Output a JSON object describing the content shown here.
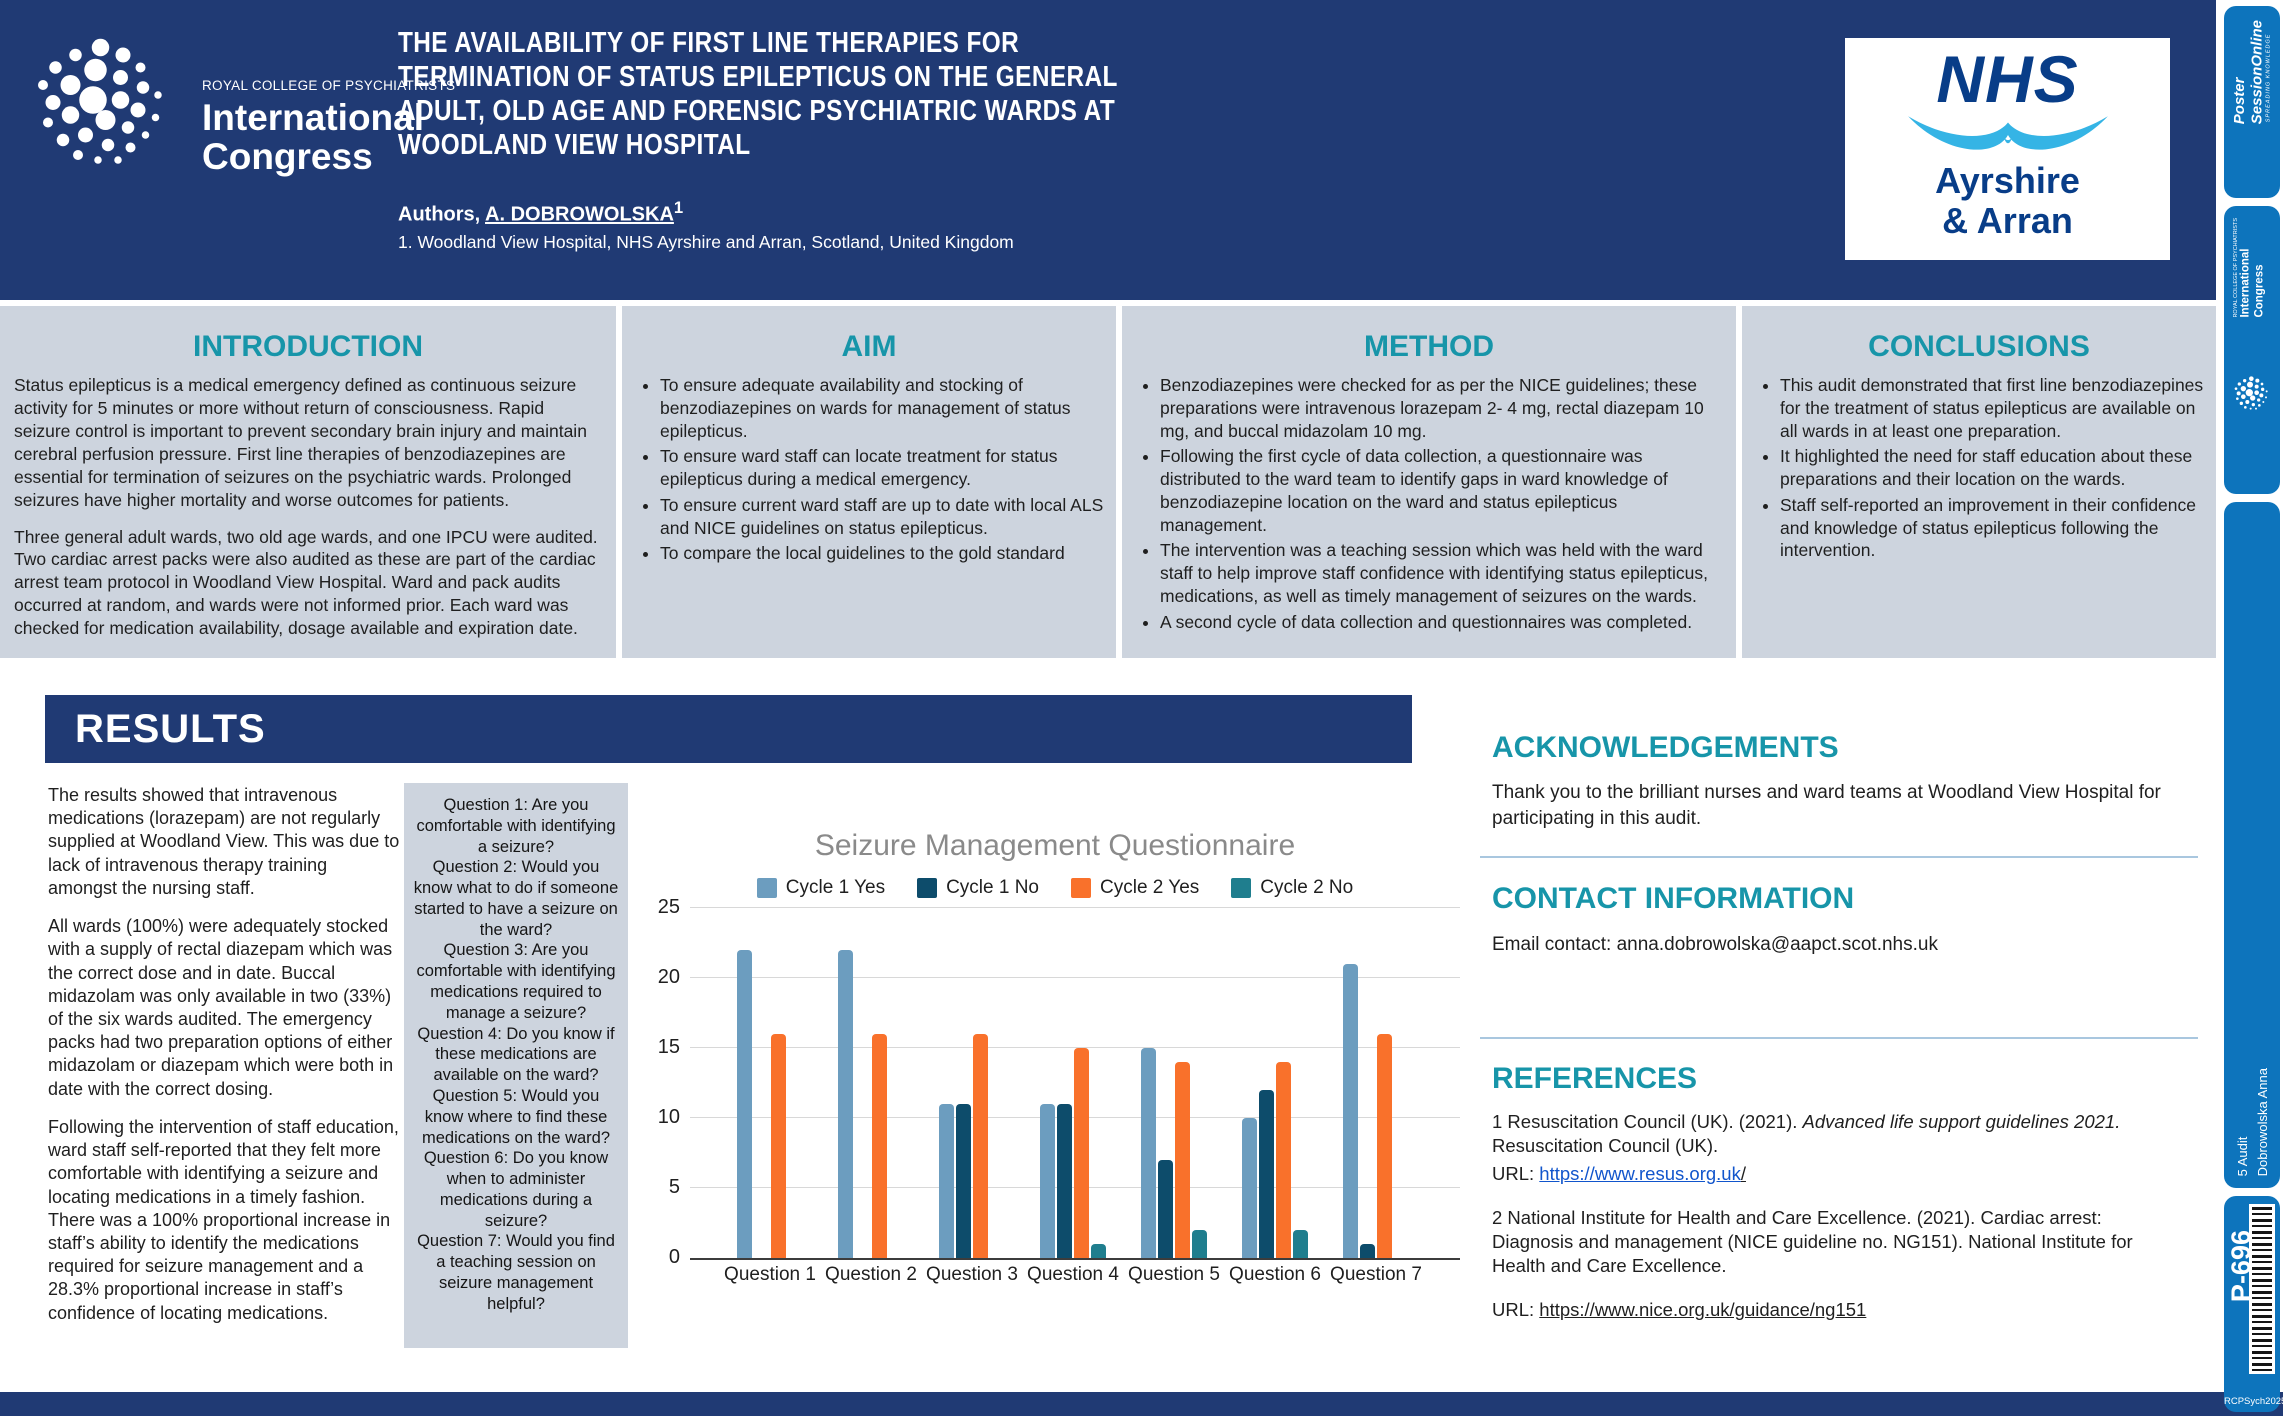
{
  "header": {
    "congress_logo": {
      "org": "ROYAL COLLEGE OF PSYCHIATRISTS",
      "line1": "International",
      "line2": "Congress"
    },
    "title_lines": [
      "THE AVAILABILITY OF FIRST LINE THERAPIES FOR",
      "TERMINATION OF STATUS EPILEPTICUS ON THE GENERAL",
      "ADULT, OLD AGE AND FORENSIC PSYCHIATRIC WARDS AT",
      "WOODLAND VIEW HOSPITAL"
    ],
    "authors_prefix": "Authors, ",
    "author_name": "A. DOBROWOLSKA",
    "author_sup": "1",
    "affiliation": "1. Woodland View Hospital, NHS Ayrshire and Arran, Scotland, United Kingdom",
    "nhs_logo": {
      "word": "NHS",
      "line1": "Ayrshire",
      "line2": "& Arran"
    }
  },
  "introduction": {
    "heading": "INTRODUCTION",
    "paragraphs": [
      "Status epilepticus is a medical emergency defined as continuous seizure activity for 5 minutes or more without return of consciousness. Rapid seizure control is important to prevent secondary brain injury and maintain cerebral perfusion pressure. First line therapies of benzodiazepines are essential for termination of seizures on the psychiatric wards. Prolonged seizures have higher mortality and worse outcomes for patients.",
      "Three general adult wards, two old age wards, and one IPCU were audited. Two cardiac arrest packs were also audited as these are part of the cardiac arrest team protocol in Woodland View Hospital. Ward and pack audits occurred at random, and wards were not informed prior. Each ward was checked for medication availability, dosage available and expiration date."
    ]
  },
  "aim": {
    "heading": "AIM",
    "bullets": [
      "To ensure adequate availability and stocking of benzodiazepines on wards for management of status epilepticus.",
      "To ensure ward staff can locate treatment for status epilepticus during a medical emergency.",
      "To ensure current ward staff are up to date with local ALS and NICE guidelines on status epilepticus.",
      "To compare the local guidelines to the gold standard"
    ]
  },
  "method": {
    "heading": "METHOD",
    "bullets": [
      "Benzodiazepines were checked for as per the NICE guidelines; these preparations were intravenous lorazepam 2- 4 mg, rectal diazepam 10 mg, and buccal midazolam 10 mg.",
      "Following the first cycle of data collection, a questionnaire was distributed to the ward team to identify gaps in ward knowledge of benzodiazepine location on the ward and status epilepticus management.",
      "The intervention was a teaching session which was held with the ward staff to help improve staff confidence with identifying status epilepticus, medications, as well as timely management of seizures on the wards.",
      "A second cycle of data collection and questionnaires was completed."
    ]
  },
  "conclusions": {
    "heading": "CONCLUSIONS",
    "bullets": [
      "This audit demonstrated that first line benzodiazepines for the treatment of status epilepticus are available on all wards in at least one preparation.",
      "It highlighted the need for staff education about these preparations and their location on the wards.",
      "Staff self-reported an improvement in their confidence and knowledge of status epilepticus following the intervention."
    ]
  },
  "results": {
    "heading": "RESULTS",
    "paragraphs": [
      "The results showed that intravenous medications (lorazepam) are not regularly supplied at Woodland View. This was due to lack of intravenous therapy training amongst the nursing staff.",
      "All wards (100%) were adequately stocked with a supply of rectal diazepam which was the correct dose and in date. Buccal midazolam was only available in two (33%) of the six wards audited. The emergency packs had two preparation options of either midazolam or diazepam which were both in date with the correct dosing.",
      "Following the intervention of staff education, ward staff self-reported that they felt more comfortable with identifying a seizure and locating medications in a timely fashion. There was a 100% proportional increase in staff’s ability to identify the medications required for seizure management and a 28.3% proportional increase in staff’s confidence of locating medications."
    ],
    "questions": [
      "Question 1: Are you comfortable with identifying a seizure?",
      "Question 2: Would you know what to do if someone started to have a seizure on the ward?",
      "Question 3: Are you comfortable with identifying medications required to manage a seizure?",
      "Question 4: Do you know if these medications are available on the ward?",
      "Question 5: Would you know where to find these medications on the ward?",
      "Question 6: Do you know when to administer medications during a seizure?",
      "Question 7: Would you find a teaching session on seizure management helpful?"
    ]
  },
  "acknowledgements": {
    "heading": "ACKNOWLEDGEMENTS",
    "text": "Thank you to the brilliant nurses and ward teams at Woodland View Hospital for participating in this audit."
  },
  "contact": {
    "heading": "CONTACT INFORMATION",
    "text": "Email contact: anna.dobrowolska@aapct.scot.nhs.uk"
  },
  "references": {
    "heading": "REFERENCES",
    "ref1_text": "1 Resuscitation Council (UK). (2021). ",
    "ref1_italic": "Advanced life support guidelines 2021.",
    "ref1_rest": " Resuscitation Council (UK).",
    "ref1_url_label": "URL: ",
    "ref1_url": "https://www.resus.org.uk",
    "ref1_url_suffix": "/",
    "ref2_text": "2 National Institute for Health and Care Excellence. (2021). Cardiac arrest: Diagnosis and management (NICE guideline no. NG151). National Institute for Health and Care Excellence.",
    "ref2_url_label": "URL: ",
    "ref2_url": "https://www.nice.org.uk/guidance/ng151"
  },
  "sidebar": {
    "poster_session": {
      "line1": "Poster",
      "line2": "SessionOnline",
      "tagline": "SPREADING KNOWLEDGE"
    },
    "congress": {
      "org": "ROYAL COLLEGE OF PSYCHIATRISTS",
      "line1": "International",
      "line2": "Congress"
    },
    "category": "5 Audit",
    "author": "Dobrowolska Anna",
    "poster_number": "P-696",
    "congress_tag": "RCPSych2025"
  },
  "colors": {
    "header_navy": "#203A74",
    "band_gray": "#CDD4DE",
    "heading_teal": "#1795A9",
    "sidebar_blue": "#0D74BC",
    "nhs_navy": "#083D88",
    "nhs_light_blue": "#35B4E5",
    "link_blue": "#1155CC"
  },
  "chart_data": {
    "type": "bar",
    "title": "Seizure Management Questionnaire",
    "categories": [
      "Question 1",
      "Question 2",
      "Question 3",
      "Question 4",
      "Question 5",
      "Question 6",
      "Question 7"
    ],
    "series": [
      {
        "name": "Cycle 1 Yes",
        "color": "#6C9DBF",
        "values": [
          22,
          22,
          11,
          11,
          15,
          10,
          21
        ]
      },
      {
        "name": "Cycle 1 No",
        "color": "#0D4C6B",
        "values": [
          0,
          0,
          11,
          11,
          7,
          12,
          1
        ]
      },
      {
        "name": "Cycle 2 Yes",
        "color": "#F9712B",
        "values": [
          16,
          16,
          16,
          15,
          14,
          14,
          16
        ]
      },
      {
        "name": "Cycle 2 No",
        "color": "#1F7E8E",
        "values": [
          0,
          0,
          0,
          1,
          2,
          2,
          0
        ]
      }
    ],
    "xlabel": "",
    "ylabel": "",
    "ylim": [
      0,
      25
    ],
    "yticks": [
      0,
      5,
      10,
      15,
      20,
      25
    ],
    "grid": true,
    "legend_position": "top"
  }
}
